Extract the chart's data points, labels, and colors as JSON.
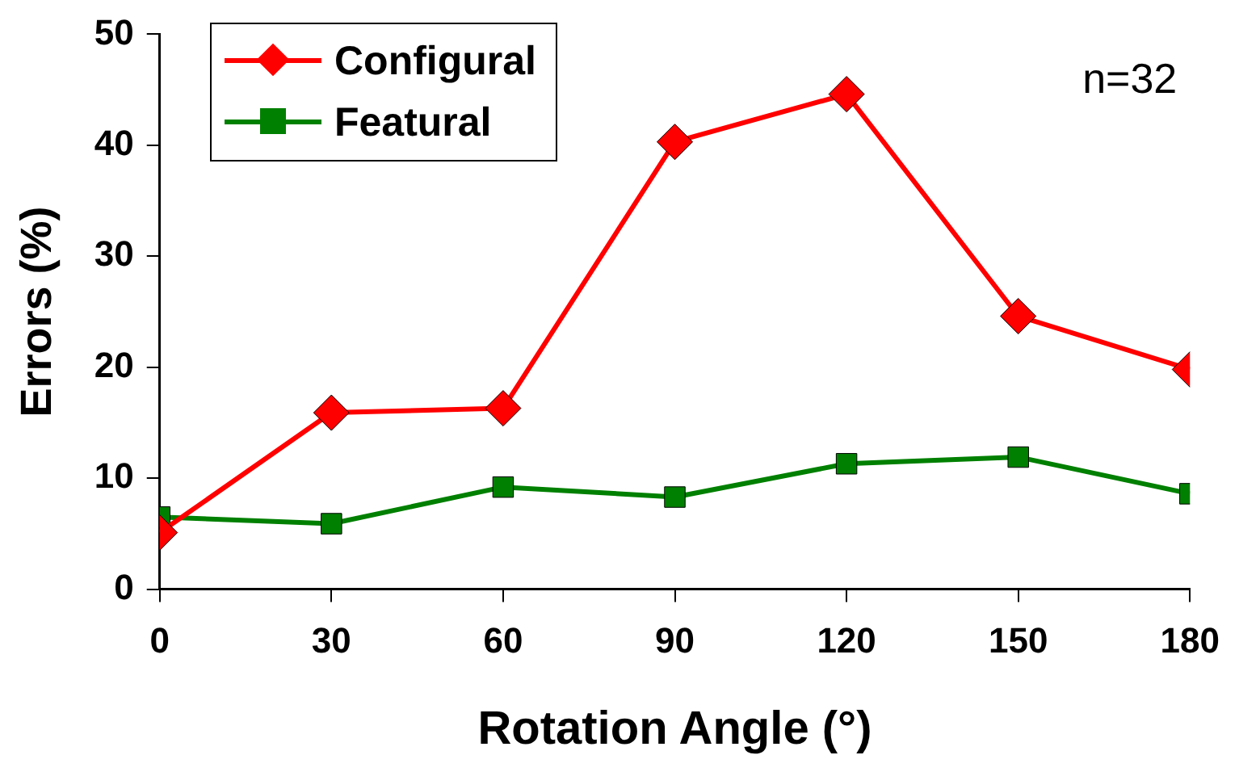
{
  "chart_data": {
    "type": "line",
    "xlabel": "Rotation Angle (°)",
    "ylabel": "Errors (%)",
    "x": [
      0,
      30,
      60,
      90,
      120,
      150,
      180
    ],
    "xlim": [
      0,
      180
    ],
    "xticks": [
      0,
      30,
      60,
      90,
      120,
      150,
      180
    ],
    "ylim": [
      0,
      50
    ],
    "yticks": [
      0,
      10,
      20,
      30,
      40,
      50
    ],
    "grid": false,
    "legend": "top left",
    "line_style": "solid",
    "annotations": [
      "n=32"
    ],
    "series": [
      {
        "name": "Configural",
        "color": "#ff0000",
        "marker": "diamond",
        "values": [
          5.1,
          15.9,
          16.3,
          40.3,
          44.6,
          24.6,
          19.8
        ]
      },
      {
        "name": "Featural",
        "color": "#008000",
        "marker": "square",
        "values": [
          6.5,
          5.9,
          9.2,
          8.3,
          11.3,
          11.9,
          8.6
        ]
      }
    ]
  }
}
